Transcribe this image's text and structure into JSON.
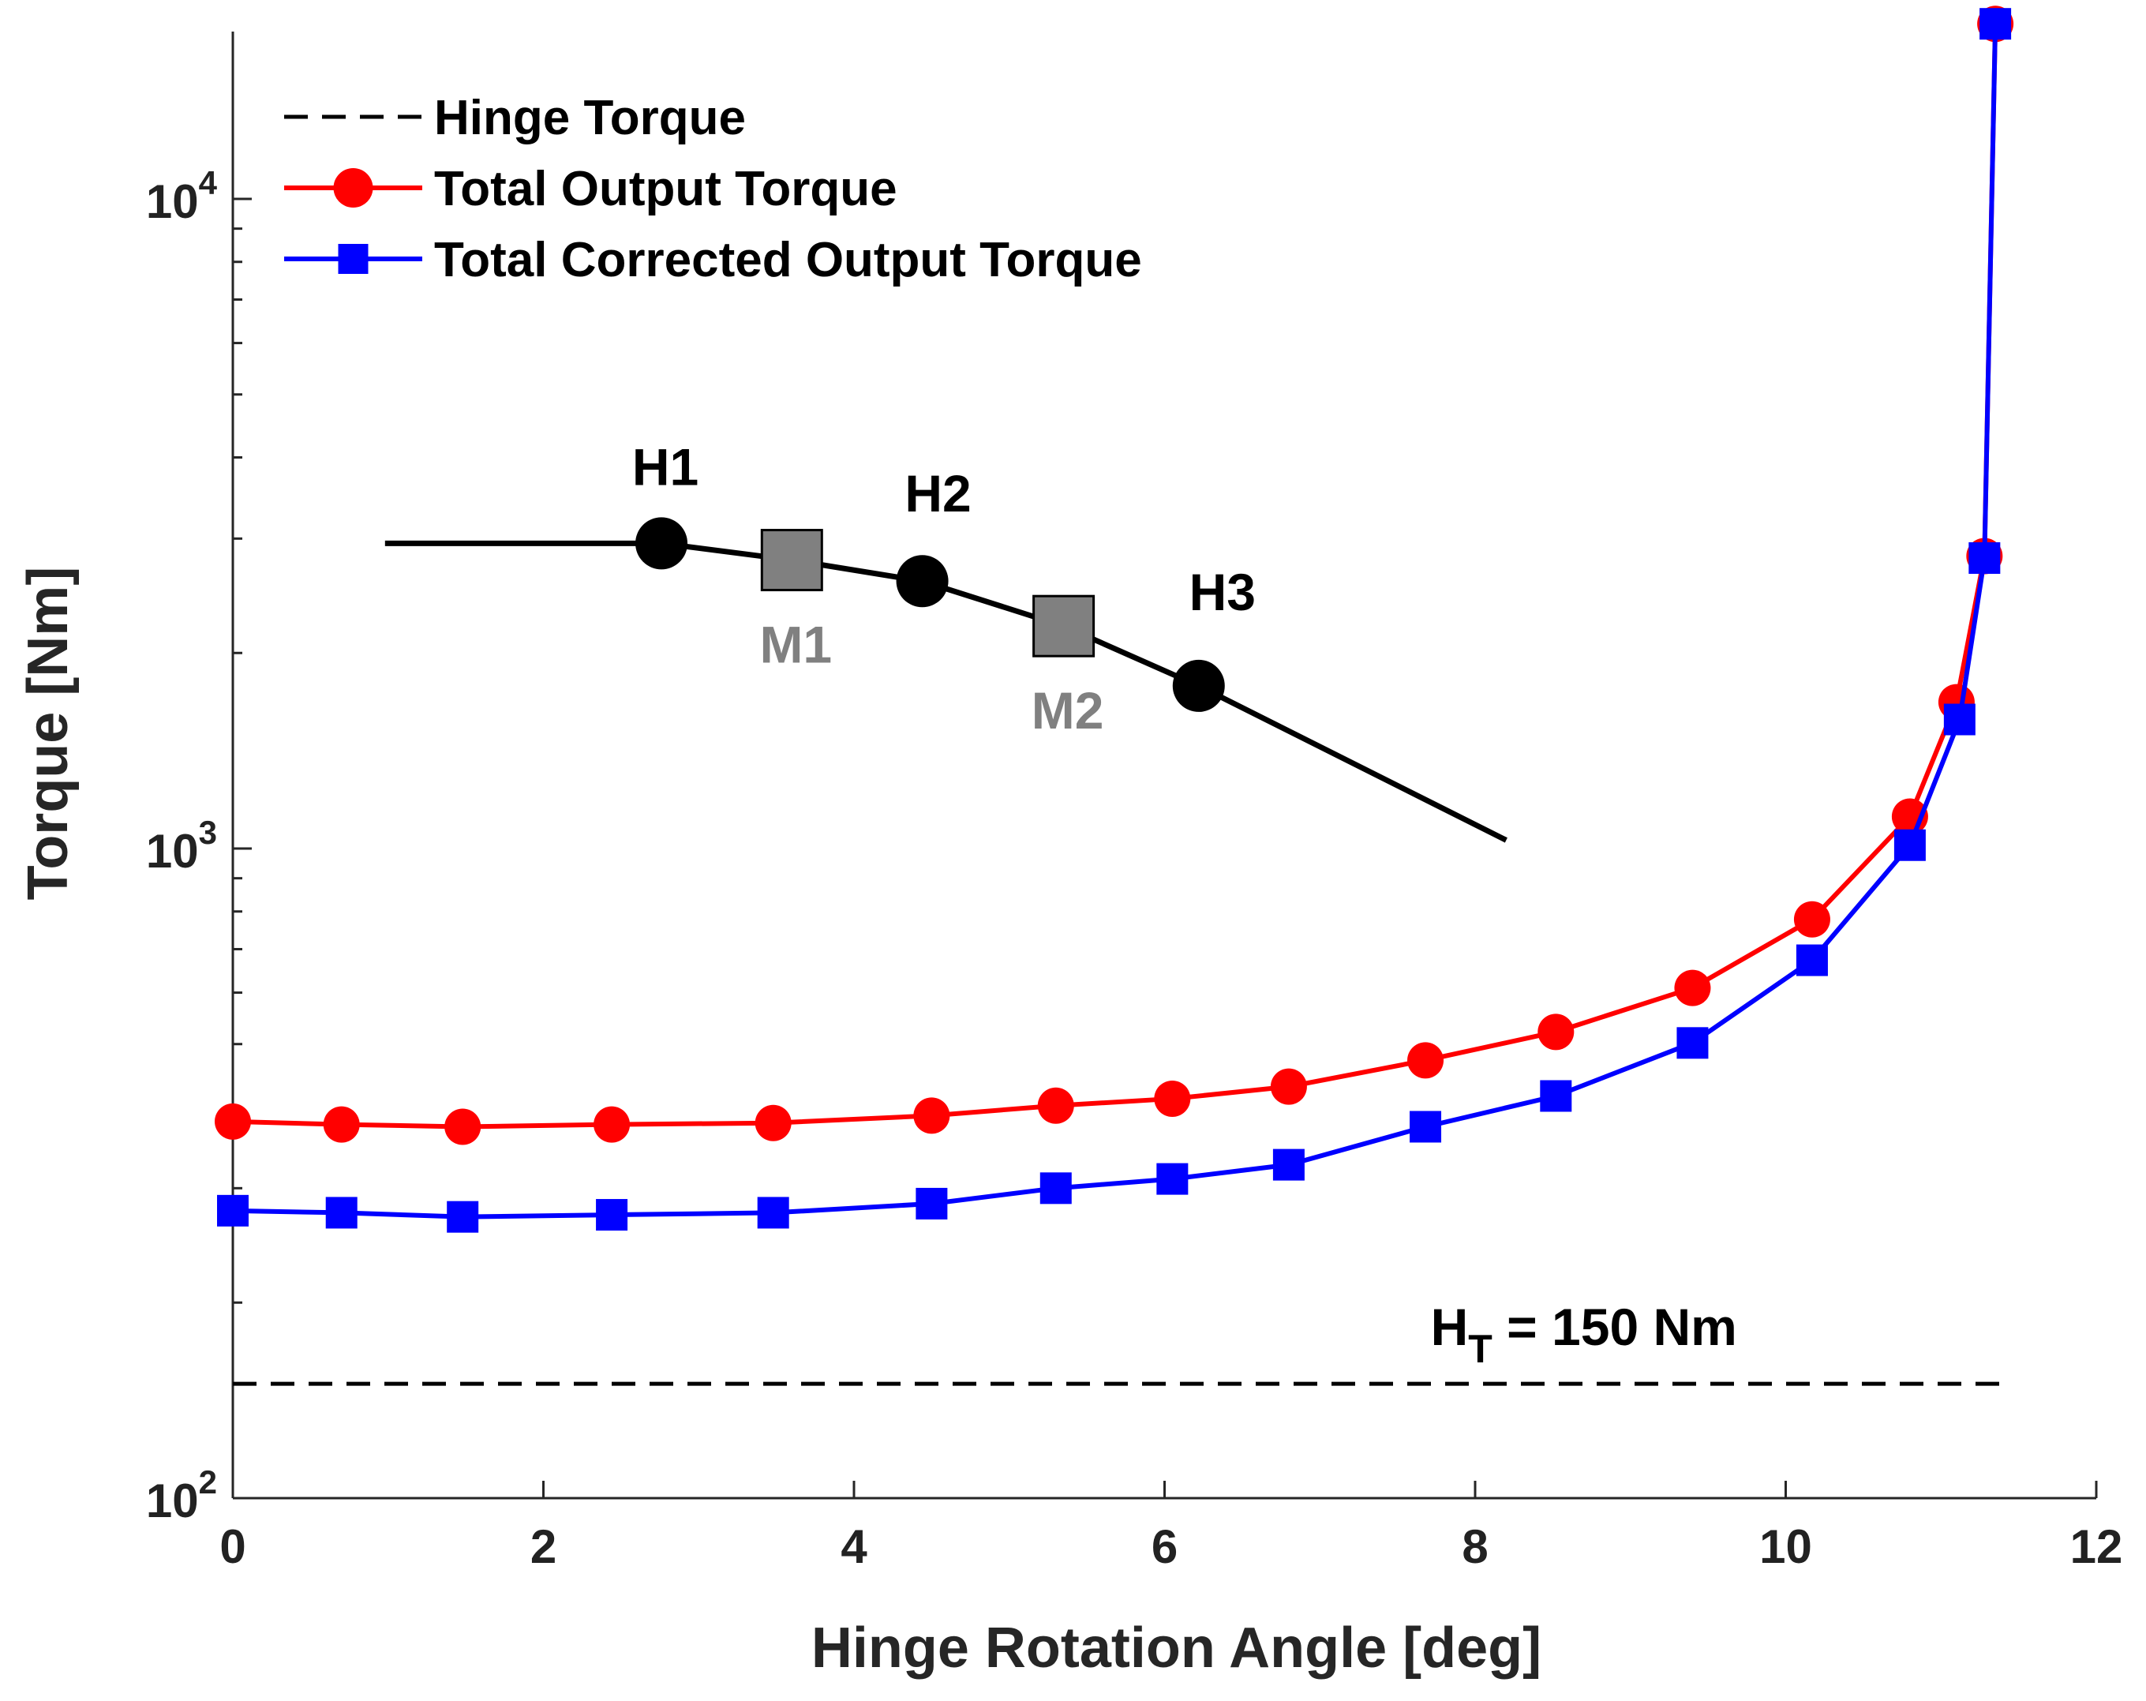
{
  "chart_data": {
    "type": "line",
    "xlabel": "Hinge Rotation Angle [deg]",
    "ylabel": "Torque [Nm]",
    "xlim": [
      0,
      12
    ],
    "ylim": [
      100,
      20000
    ],
    "yscale": "log",
    "grid": false,
    "legend_position": "top-left",
    "x_ticks": [
      0,
      2,
      4,
      6,
      8,
      10,
      12
    ],
    "x_tick_labels": [
      "0",
      "2",
      "4",
      "6",
      "8",
      "10",
      "12"
    ],
    "y_ticks": [
      {
        "value": 100,
        "base": "10",
        "exp": "2"
      },
      {
        "value": 1000,
        "base": "10",
        "exp": "3"
      },
      {
        "value": 10000,
        "base": "10",
        "exp": "4"
      }
    ],
    "y_minor_ticks": [
      200,
      300,
      400,
      500,
      600,
      700,
      800,
      900,
      2000,
      3000,
      4000,
      5000,
      6000,
      7000,
      8000,
      9000
    ],
    "series": [
      {
        "name": "Hinge Torque",
        "style": "dashed",
        "color": "#000000",
        "marker": "none",
        "x": [
          0,
          11.4
        ],
        "y": [
          150,
          150
        ]
      },
      {
        "name": "Total Output Torque",
        "style": "solid",
        "color": "#ff0000",
        "marker": "circle",
        "x": [
          0,
          0.7,
          1.48,
          2.44,
          3.48,
          4.5,
          5.3,
          6.05,
          6.8,
          7.68,
          8.52,
          9.4,
          10.17,
          10.8,
          11.1,
          11.28,
          11.35
        ],
        "y": [
          380,
          376,
          373,
          376,
          378,
          388,
          402,
          412,
          430,
          472,
          522,
          610,
          778,
          1120,
          1680,
          2820,
          18600
        ]
      },
      {
        "name": "Total Corrected Output Torque",
        "style": "solid",
        "color": "#0000ff",
        "marker": "square",
        "x": [
          0,
          0.7,
          1.48,
          2.44,
          3.48,
          4.5,
          5.3,
          6.05,
          6.8,
          7.68,
          8.52,
          9.4,
          10.17,
          10.8,
          11.12,
          11.28,
          11.35
        ],
        "y": [
          277,
          275,
          271,
          273,
          275,
          284,
          300,
          310,
          326,
          373,
          416,
          502,
          673,
          1012,
          1580,
          2800,
          18600
        ]
      }
    ],
    "hinge_curve": {
      "color": "#000000",
      "x": [
        0.98,
        2.76,
        3.6,
        4.44,
        5.35,
        6.22,
        8.2
      ],
      "y": [
        2950,
        2950,
        2780,
        2580,
        2200,
        1780,
        1030
      ]
    },
    "hinge_points": [
      {
        "label": "H1",
        "x": 2.76,
        "y": 2950
      },
      {
        "label": "H2",
        "x": 4.44,
        "y": 2580
      },
      {
        "label": "H3",
        "x": 6.22,
        "y": 1780
      }
    ],
    "mid_points": [
      {
        "label": "M1",
        "x": 3.6,
        "y": 2780
      },
      {
        "label": "M2",
        "x": 5.35,
        "y": 2200
      }
    ],
    "annotations": [
      {
        "text_main": "H",
        "text_sub": "T",
        "text_rest": " = 150 Nm",
        "x": 7.5,
        "y": 172
      }
    ],
    "colors": {
      "output": "#ff0000",
      "corrected": "#0000ff",
      "hinge": "#000000",
      "mid_fill": "#808080",
      "mid_text": "#808080"
    }
  }
}
